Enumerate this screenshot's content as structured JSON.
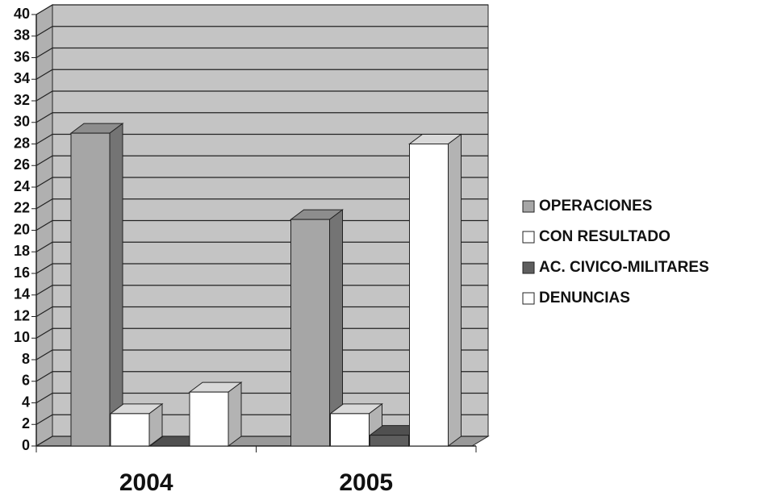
{
  "chart_data": {
    "type": "bar3d",
    "categories": [
      "2004",
      "2005"
    ],
    "series": [
      {
        "name": "OPERACIONES",
        "color": "#a6a6a6",
        "values": [
          29,
          21
        ]
      },
      {
        "name": "CON RESULTADO",
        "color": "#ffffff",
        "values": [
          3,
          3
        ]
      },
      {
        "name": "AC. CIVICO-MILITARES",
        "color": "#5e5e5e",
        "values": [
          0,
          1
        ]
      },
      {
        "name": "DENUNCIAS",
        "color": "#ffffff",
        "values": [
          5,
          28
        ]
      }
    ],
    "ylim": [
      0,
      40
    ],
    "yticks": [
      0,
      2,
      4,
      6,
      8,
      10,
      12,
      14,
      16,
      18,
      20,
      22,
      24,
      26,
      28,
      30,
      32,
      34,
      36,
      38,
      40
    ],
    "grid": true,
    "legend": "right"
  }
}
